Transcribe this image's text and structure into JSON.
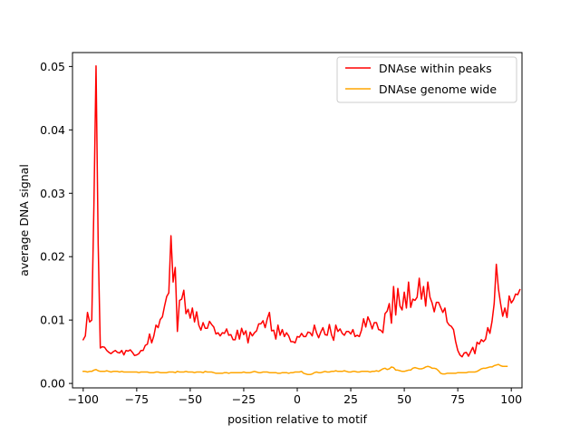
{
  "chart_data": {
    "type": "line",
    "xlabel": "position relative to motif",
    "ylabel": "average DNA signal",
    "xlim": [
      -105,
      105
    ],
    "ylim": [
      -0.0007,
      0.0522
    ],
    "xticks": [
      -100,
      -75,
      -50,
      -25,
      0,
      25,
      50,
      75,
      100
    ],
    "xtick_labels": [
      "−100",
      "−75",
      "−50",
      "−25",
      "0",
      "25",
      "50",
      "75",
      "100"
    ],
    "yticks": [
      0.0,
      0.01,
      0.02,
      0.03,
      0.04,
      0.05
    ],
    "ytick_labels": [
      "0.00",
      "0.01",
      "0.02",
      "0.03",
      "0.04",
      "0.05"
    ],
    "grid": false,
    "legend": {
      "position": "top-right"
    },
    "x_start": -100,
    "x_step": 1,
    "series": [
      {
        "name": "DNAse within peaks",
        "color": "#ff0000",
        "values": [
          0.0069,
          0.0075,
          0.0112,
          0.0097,
          0.01,
          0.028,
          0.0501,
          0.022,
          0.0056,
          0.0058,
          0.0057,
          0.0052,
          0.0049,
          0.0047,
          0.005,
          0.0052,
          0.0049,
          0.0048,
          0.0052,
          0.0045,
          0.0052,
          0.0051,
          0.0053,
          0.0049,
          0.0044,
          0.0045,
          0.0047,
          0.0052,
          0.0052,
          0.006,
          0.0062,
          0.0078,
          0.0064,
          0.0075,
          0.0092,
          0.0088,
          0.0101,
          0.0105,
          0.0122,
          0.0137,
          0.0143,
          0.0233,
          0.016,
          0.0183,
          0.0082,
          0.0131,
          0.0133,
          0.0147,
          0.011,
          0.0117,
          0.0103,
          0.0119,
          0.0097,
          0.0113,
          0.0092,
          0.0084,
          0.0096,
          0.0087,
          0.0087,
          0.0098,
          0.0093,
          0.0089,
          0.0078,
          0.008,
          0.0075,
          0.008,
          0.0079,
          0.0086,
          0.0076,
          0.0077,
          0.0069,
          0.0069,
          0.0084,
          0.007,
          0.0087,
          0.0077,
          0.0083,
          0.0064,
          0.0081,
          0.0075,
          0.008,
          0.0083,
          0.0094,
          0.0094,
          0.0099,
          0.0088,
          0.0102,
          0.0112,
          0.0083,
          0.0084,
          0.007,
          0.0092,
          0.0076,
          0.0085,
          0.0074,
          0.008,
          0.0075,
          0.0066,
          0.0066,
          0.0064,
          0.0074,
          0.0073,
          0.0079,
          0.0074,
          0.0074,
          0.0081,
          0.008,
          0.0075,
          0.0092,
          0.008,
          0.0072,
          0.0081,
          0.0088,
          0.0077,
          0.0076,
          0.0093,
          0.0077,
          0.0068,
          0.0092,
          0.0082,
          0.0086,
          0.0079,
          0.0076,
          0.0082,
          0.0082,
          0.0078,
          0.0085,
          0.0074,
          0.0076,
          0.0074,
          0.0084,
          0.0102,
          0.0089,
          0.0105,
          0.0097,
          0.0086,
          0.0096,
          0.0096,
          0.0085,
          0.0084,
          0.008,
          0.011,
          0.0114,
          0.0126,
          0.0095,
          0.0153,
          0.0108,
          0.015,
          0.0122,
          0.0116,
          0.0144,
          0.0119,
          0.016,
          0.012,
          0.0133,
          0.0131,
          0.0136,
          0.0166,
          0.0133,
          0.0153,
          0.0122,
          0.016,
          0.0136,
          0.0127,
          0.0113,
          0.0128,
          0.0128,
          0.012,
          0.0112,
          0.0119,
          0.0097,
          0.0092,
          0.009,
          0.0085,
          0.0066,
          0.0052,
          0.0045,
          0.0042,
          0.0048,
          0.0049,
          0.0043,
          0.005,
          0.0057,
          0.0047,
          0.0065,
          0.0062,
          0.0069,
          0.0066,
          0.007,
          0.0088,
          0.0079,
          0.0098,
          0.0126,
          0.0188,
          0.0149,
          0.0126,
          0.0106,
          0.0119,
          0.0104,
          0.0138,
          0.0127,
          0.0132,
          0.0141,
          0.014,
          0.0148
        ]
      },
      {
        "name": "DNAse genome wide",
        "color": "#ffa500",
        "values": [
          0.0019,
          0.0019,
          0.0018,
          0.0019,
          0.0019,
          0.0021,
          0.0022,
          0.002,
          0.0019,
          0.0019,
          0.0019,
          0.002,
          0.0019,
          0.0018,
          0.0019,
          0.0019,
          0.0019,
          0.0018,
          0.0019,
          0.0018,
          0.0018,
          0.0018,
          0.0018,
          0.0018,
          0.0018,
          0.0018,
          0.0017,
          0.0018,
          0.0018,
          0.0018,
          0.0018,
          0.0017,
          0.0017,
          0.0017,
          0.0018,
          0.0018,
          0.0017,
          0.0017,
          0.0017,
          0.0017,
          0.0018,
          0.0018,
          0.0018,
          0.0017,
          0.0019,
          0.0018,
          0.0018,
          0.0018,
          0.0019,
          0.0018,
          0.0018,
          0.0018,
          0.0017,
          0.0018,
          0.0018,
          0.0018,
          0.0017,
          0.0019,
          0.0018,
          0.0018,
          0.0018,
          0.0017,
          0.0016,
          0.0016,
          0.0016,
          0.0016,
          0.0017,
          0.0017,
          0.0016,
          0.0017,
          0.0017,
          0.0017,
          0.0017,
          0.0017,
          0.0017,
          0.0018,
          0.0017,
          0.0017,
          0.0017,
          0.0018,
          0.0019,
          0.0018,
          0.0017,
          0.0017,
          0.0018,
          0.0018,
          0.0018,
          0.0017,
          0.0017,
          0.0017,
          0.0017,
          0.0016,
          0.0016,
          0.0017,
          0.0017,
          0.0017,
          0.0016,
          0.0017,
          0.0017,
          0.0018,
          0.0018,
          0.0018,
          0.0019,
          0.0016,
          0.0015,
          0.0014,
          0.0014,
          0.0015,
          0.0017,
          0.0018,
          0.0017,
          0.0017,
          0.0018,
          0.0019,
          0.0018,
          0.0018,
          0.0019,
          0.0019,
          0.002,
          0.0019,
          0.0019,
          0.0019,
          0.002,
          0.0019,
          0.0018,
          0.0018,
          0.0019,
          0.0019,
          0.0018,
          0.0018,
          0.0019,
          0.0019,
          0.0019,
          0.0019,
          0.0018,
          0.0019,
          0.0019,
          0.002,
          0.0019,
          0.0021,
          0.0023,
          0.0024,
          0.0022,
          0.0023,
          0.0026,
          0.0025,
          0.0021,
          0.0021,
          0.002,
          0.0019,
          0.0019,
          0.002,
          0.0021,
          0.0021,
          0.0024,
          0.0025,
          0.0024,
          0.0023,
          0.0023,
          0.0024,
          0.0026,
          0.0027,
          0.0026,
          0.0024,
          0.0024,
          0.0023,
          0.002,
          0.0016,
          0.0015,
          0.0015,
          0.0016,
          0.0016,
          0.0016,
          0.0016,
          0.0016,
          0.0017,
          0.0017,
          0.0017,
          0.0017,
          0.0017,
          0.0018,
          0.0018,
          0.0018,
          0.0018,
          0.0019,
          0.0021,
          0.0023,
          0.0024,
          0.0024,
          0.0025,
          0.0026,
          0.0026,
          0.0028,
          0.0029,
          0.003,
          0.0028,
          0.0027,
          0.0027,
          0.0027
        ]
      }
    ]
  }
}
